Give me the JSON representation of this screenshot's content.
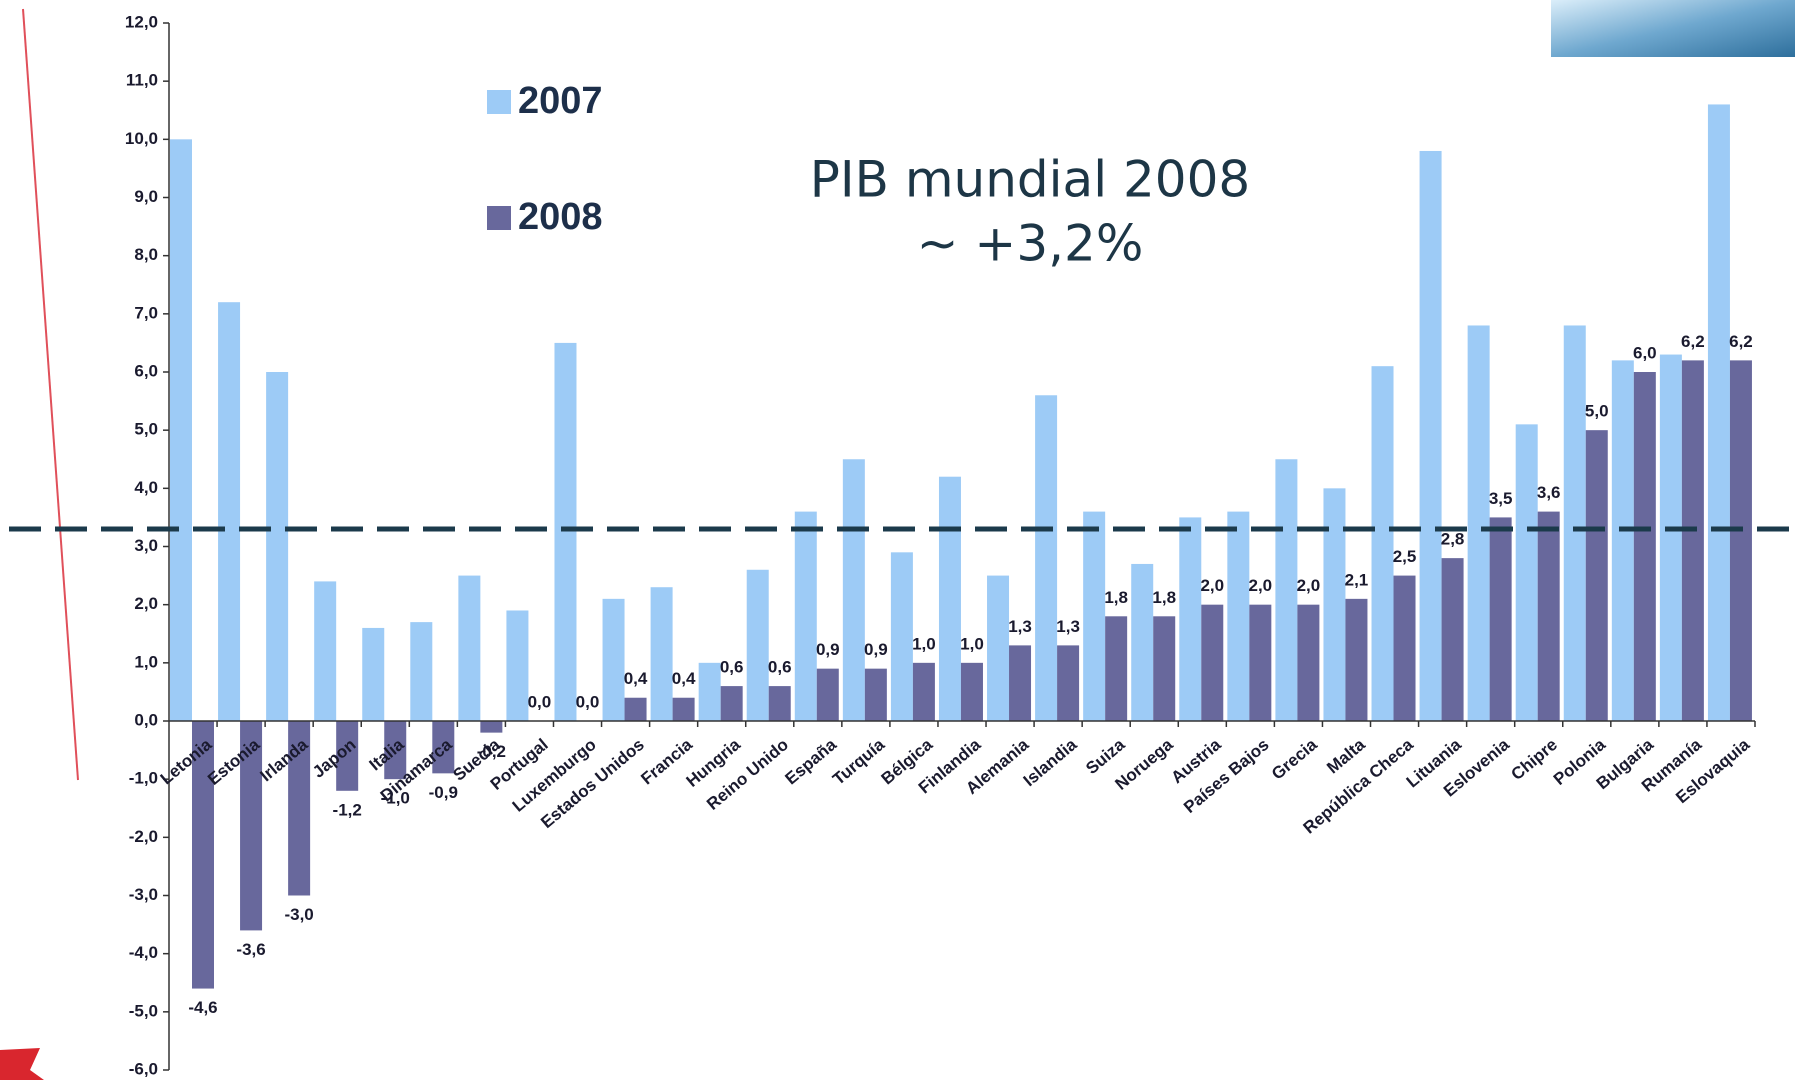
{
  "chart_data": {
    "type": "bar",
    "title": "PIB mundial 2008",
    "subtitle": "~ +3,2%",
    "categories": [
      "Letonia",
      "Estonia",
      "Irlanda",
      "Japon",
      "Italia",
      "Dinamarca",
      "Suecia",
      "Portugal",
      "Luxemburgo",
      "Estados Unidos",
      "Francia",
      "Hungria",
      "Reino Unido",
      "España",
      "Turquía",
      "Bélgica",
      "Finlandia",
      "Alemania",
      "Islandia",
      "Suiza",
      "Noruega",
      "Austria",
      "Países Bajos",
      "Grecia",
      "Malta",
      "República Checa",
      "Lituania",
      "Eslovenia",
      "Chipre",
      "Polonia",
      "Bulgaria",
      "Rumanía",
      "Eslovaquia"
    ],
    "series": [
      {
        "name": "2007",
        "color": "#9dcbf6",
        "values": [
          10.0,
          7.2,
          6.0,
          2.4,
          1.6,
          1.7,
          2.5,
          1.9,
          6.5,
          2.1,
          2.3,
          1.0,
          2.6,
          3.6,
          4.5,
          2.9,
          4.2,
          2.5,
          5.6,
          3.6,
          2.7,
          3.5,
          3.6,
          4.5,
          4.0,
          6.1,
          9.8,
          6.8,
          5.1,
          6.8,
          6.2,
          6.3,
          10.6
        ]
      },
      {
        "name": "2008",
        "color": "#68689c",
        "values": [
          -4.6,
          -3.6,
          -3.0,
          -1.2,
          -1.0,
          -0.9,
          -0.2,
          0.0,
          0.0,
          0.4,
          0.4,
          0.6,
          0.6,
          0.9,
          0.9,
          1.0,
          1.0,
          1.3,
          1.3,
          1.8,
          1.8,
          2.0,
          2.0,
          2.0,
          2.1,
          2.5,
          2.8,
          3.5,
          3.6,
          5.0,
          6.0,
          6.2,
          6.2
        ],
        "value_labels": [
          "-4,6",
          "-3,6",
          "-3,0",
          "-1,2",
          "-1,0",
          "-0,9",
          "-0,2",
          "0,0",
          "0,0",
          "0,4",
          "0,4",
          "0,6",
          "0,6",
          "0,9",
          "0,9",
          "1,0",
          "1,0",
          "1,3",
          "1,3",
          "1,8",
          "1,8",
          "2,0",
          "2,0",
          "2,0",
          "2,1",
          "2,5",
          "2,8",
          "3,5",
          "3,6",
          "5,0",
          "6,0",
          "6,2",
          "6,2"
        ]
      }
    ],
    "reference_line": 3.3,
    "ylim": [
      -6.0,
      12.0
    ],
    "yticks": [
      {
        "value": -6,
        "label": "-6,0"
      },
      {
        "value": -5,
        "label": "-5,0"
      },
      {
        "value": -4,
        "label": "-4,0"
      },
      {
        "value": -3,
        "label": "-3,0"
      },
      {
        "value": -2,
        "label": "-2,0"
      },
      {
        "value": -1,
        "label": "-1,0"
      },
      {
        "value": 0,
        "label": "0,0"
      },
      {
        "value": 1,
        "label": "1,0"
      },
      {
        "value": 2,
        "label": "2,0"
      },
      {
        "value": 3,
        "label": "3,0"
      },
      {
        "value": 4,
        "label": "4,0"
      },
      {
        "value": 5,
        "label": "5,0"
      },
      {
        "value": 6,
        "label": "6,0"
      },
      {
        "value": 7,
        "label": "7,0"
      },
      {
        "value": 8,
        "label": "8,0"
      },
      {
        "value": 9,
        "label": "9,0"
      },
      {
        "value": 10,
        "label": "10,0"
      },
      {
        "value": 11,
        "label": "11,0"
      },
      {
        "value": 12,
        "label": "12,0"
      }
    ],
    "grid": false
  }
}
